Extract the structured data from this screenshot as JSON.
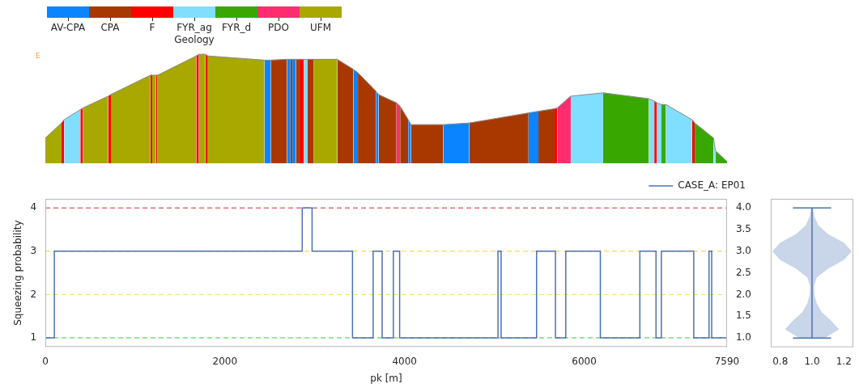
{
  "chart_data": [
    {
      "type": "area",
      "legend_title": "Geology",
      "annotation": "E",
      "categories": [
        "AV-CPA",
        "CPA",
        "F",
        "FYR_ag",
        "FYR_d",
        "PDO",
        "UFM"
      ],
      "colors": [
        "#0a84ff",
        "#a83800",
        "#ff0000",
        "#80dfff",
        "#38a800",
        "#ff2d6f",
        "#a8a800"
      ],
      "x": [
        0,
        180,
        210,
        390,
        420,
        700,
        730,
        1170,
        1190,
        1230,
        1250,
        1680,
        1710,
        1780,
        1810,
        2440,
        2510,
        2690,
        2730,
        2750,
        2790,
        2830,
        2880,
        2920,
        2990,
        3250,
        3430,
        3480,
        3680,
        3710,
        3910,
        3950,
        4040,
        4070,
        4430,
        4720,
        5380,
        5490,
        5670,
        5700,
        5850,
        6210,
        6720,
        6780,
        6810,
        6860,
        6910,
        7200,
        7230,
        7440,
        7460,
        7590
      ],
      "elevation": [
        30,
        48,
        52,
        64,
        66,
        80,
        82,
        105,
        105,
        105,
        105,
        128,
        130,
        130,
        128,
        123,
        123,
        124,
        124,
        124,
        124,
        124,
        124,
        124,
        124,
        124,
        112,
        108,
        86,
        82,
        72,
        68,
        52,
        46,
        46,
        48,
        60,
        62,
        65,
        66,
        80,
        84,
        77,
        74,
        72,
        70,
        70,
        52,
        48,
        30,
        15,
        2
      ],
      "geology": [
        "UFM",
        "F",
        "FYR_ag",
        "F",
        "UFM",
        "F",
        "UFM",
        "F",
        "UFM",
        "F",
        "UFM",
        "F",
        "UFM",
        "F",
        "UFM",
        "AV-CPA",
        "CPA",
        "AV-CPA",
        "CPA",
        "AV-CPA",
        "CPA",
        "F",
        "FYR_ag",
        "CPA",
        "UFM",
        "CPA",
        "AV-CPA",
        "CPA",
        "AV-CPA",
        "CPA",
        "PDO",
        "CPA",
        "AV-CPA",
        "CPA",
        "AV-CPA",
        "CPA",
        "AV-CPA",
        "CPA",
        "F",
        "PDO",
        "FYR_ag",
        "FYR_d",
        "FYR_ag",
        "F",
        "FYR_ag",
        "FYR_d",
        "FYR_ag",
        "F",
        "FYR_d",
        "FYR_ag",
        "FYR_d"
      ],
      "xlim": [
        0,
        7590
      ],
      "ylim": [
        0,
        135
      ],
      "tick_labels": false
    },
    {
      "type": "line",
      "xlabel": "pk [m]",
      "ylabel": "Squeezing probability",
      "x": [
        0,
        100,
        2860,
        2970,
        3420,
        3650,
        3750,
        3875,
        3945,
        5040,
        5075,
        5470,
        5680,
        5795,
        6180,
        6620,
        6800,
        6860,
        7220,
        7390,
        7420,
        7590
      ],
      "series": [
        {
          "name": "CASE_A: EP01",
          "color": "#4c72b0",
          "line_style": "steps",
          "values": [
            1,
            3,
            4,
            3,
            1,
            3,
            1,
            3,
            1,
            3,
            1,
            3,
            1,
            3,
            1,
            3,
            1,
            3,
            1,
            3,
            1,
            1
          ]
        }
      ],
      "xlim": [
        0,
        7590
      ],
      "xticks": [
        0,
        2000,
        4000,
        6000,
        7590
      ],
      "ylim": [
        0.79,
        4.21
      ],
      "yticks": [
        1,
        2,
        3,
        4
      ],
      "y2lim": [
        0.79,
        4.21
      ],
      "y2ticks": [
        {
          "value": 1,
          "label": "1.0"
        },
        1.5,
        {
          "value": 2,
          "label": "2.0"
        },
        2.5,
        {
          "value": 3,
          "label": "3.0"
        },
        3.5,
        {
          "value": 4,
          "label": "4.0"
        }
      ],
      "hlines": [
        {
          "value": 4,
          "color": "#d62728",
          "line_style": "dashed"
        },
        {
          "value": 3,
          "color": "#ffc933",
          "line_style": "dashed"
        },
        {
          "value": 2,
          "color": "#f2e06b",
          "line_style": "dashed"
        },
        {
          "value": 1,
          "color": "#2ecc40",
          "line_style": "dashed"
        }
      ],
      "legend": "top",
      "grid": false
    },
    {
      "type": "violin",
      "y": [
        1.0,
        1.2,
        1.4,
        1.6,
        1.8,
        2.0,
        2.2,
        2.4,
        2.6,
        2.8,
        3.0,
        3.2,
        3.4,
        3.6,
        3.8,
        4.0
      ],
      "half_width": [
        0.08,
        0.17,
        0.12,
        0.06,
        0.03,
        0.015,
        0.012,
        0.03,
        0.1,
        0.2,
        0.25,
        0.2,
        0.1,
        0.04,
        0.015,
        0.005
      ],
      "center": 1,
      "min": 1,
      "max": 4,
      "color": "#c9d5e8",
      "xlim": [
        0.74,
        1.26
      ],
      "xticks": [
        0.8,
        {
          "value": 1,
          "label": "1.0"
        },
        1.2
      ],
      "ylim": [
        0.79,
        4.21
      ],
      "tick_labels": "x"
    }
  ]
}
